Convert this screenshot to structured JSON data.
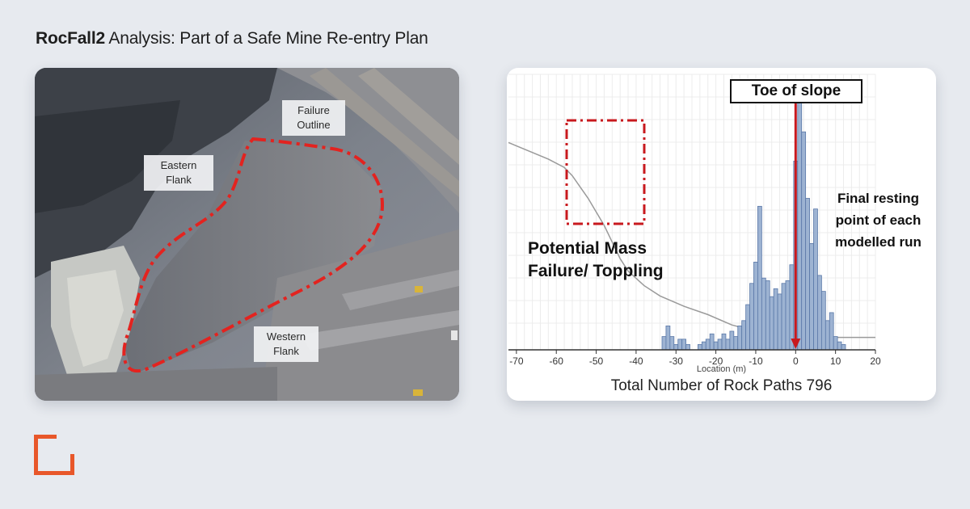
{
  "header": {
    "brand": "RocFall2",
    "rest": " Analysis: Part of a Safe Mine Re-entry Plan"
  },
  "photo": {
    "labels": {
      "failure_outline": [
        "Failure",
        "Outline"
      ],
      "eastern_flank": [
        "Eastern",
        "Flank"
      ],
      "western_flank": [
        "Western",
        "Flank"
      ]
    },
    "outline_color": "#e3231f"
  },
  "chart_data": {
    "type": "bar",
    "xlabel": "Location (m)",
    "xlim": [
      -72,
      20
    ],
    "xticks": [
      -70,
      -60,
      -50,
      -40,
      -30,
      -20,
      -10,
      0,
      10,
      20
    ],
    "footer": "Total Number of Rock Paths 796",
    "bar_color": "#9db3d2",
    "bar_edge": "#5a78a8",
    "bins": [
      {
        "x": -33,
        "h": 0.05
      },
      {
        "x": -32,
        "h": 0.09
      },
      {
        "x": -31,
        "h": 0.05
      },
      {
        "x": -30,
        "h": 0.02
      },
      {
        "x": -29,
        "h": 0.04
      },
      {
        "x": -28,
        "h": 0.04
      },
      {
        "x": -27,
        "h": 0.02
      },
      {
        "x": -26,
        "h": 0.0
      },
      {
        "x": -25,
        "h": 0.0
      },
      {
        "x": -24,
        "h": 0.02
      },
      {
        "x": -23,
        "h": 0.03
      },
      {
        "x": -22,
        "h": 0.04
      },
      {
        "x": -21,
        "h": 0.06
      },
      {
        "x": -20,
        "h": 0.03
      },
      {
        "x": -19,
        "h": 0.04
      },
      {
        "x": -18,
        "h": 0.06
      },
      {
        "x": -17,
        "h": 0.04
      },
      {
        "x": -16,
        "h": 0.07
      },
      {
        "x": -15,
        "h": 0.05
      },
      {
        "x": -14,
        "h": 0.09
      },
      {
        "x": -13,
        "h": 0.11
      },
      {
        "x": -12,
        "h": 0.17
      },
      {
        "x": -11,
        "h": 0.25
      },
      {
        "x": -10,
        "h": 0.33
      },
      {
        "x": -9,
        "h": 0.54
      },
      {
        "x": -8,
        "h": 0.27
      },
      {
        "x": -7,
        "h": 0.26
      },
      {
        "x": -6,
        "h": 0.2
      },
      {
        "x": -5,
        "h": 0.23
      },
      {
        "x": -4,
        "h": 0.21
      },
      {
        "x": -3,
        "h": 0.25
      },
      {
        "x": -2,
        "h": 0.26
      },
      {
        "x": -1,
        "h": 0.32
      },
      {
        "x": 0,
        "h": 0.71
      },
      {
        "x": 1,
        "h": 1.0
      },
      {
        "x": 2,
        "h": 0.82
      },
      {
        "x": 3,
        "h": 0.57
      },
      {
        "x": 4,
        "h": 0.4
      },
      {
        "x": 5,
        "h": 0.53
      },
      {
        "x": 6,
        "h": 0.28
      },
      {
        "x": 7,
        "h": 0.22
      },
      {
        "x": 8,
        "h": 0.11
      },
      {
        "x": 9,
        "h": 0.14
      },
      {
        "x": 10,
        "h": 0.05
      },
      {
        "x": 11,
        "h": 0.03
      },
      {
        "x": 12,
        "h": 0.02
      }
    ],
    "slope_profile": [
      [
        -72,
        1.0
      ],
      [
        -62,
        0.92
      ],
      [
        -58,
        0.88
      ],
      [
        -56,
        0.84
      ],
      [
        -52,
        0.73
      ],
      [
        -48,
        0.6
      ],
      [
        -46,
        0.52
      ],
      [
        -44,
        0.44
      ],
      [
        -42,
        0.38
      ],
      [
        -38,
        0.31
      ],
      [
        -34,
        0.26
      ],
      [
        -28,
        0.21
      ],
      [
        -22,
        0.17
      ],
      [
        -16,
        0.12
      ],
      [
        -10,
        0.09
      ],
      [
        -4,
        0.07
      ],
      [
        2,
        0.07
      ],
      [
        8,
        0.06
      ],
      [
        20,
        0.06
      ]
    ],
    "toe_x": 0,
    "annotations": {
      "toe": "Toe of slope",
      "mass": [
        "Potential Mass",
        "Failure/ Toppling"
      ],
      "resting": [
        "Final resting",
        "point of each",
        "modelled run"
      ]
    },
    "red_color": "#c8191e"
  }
}
